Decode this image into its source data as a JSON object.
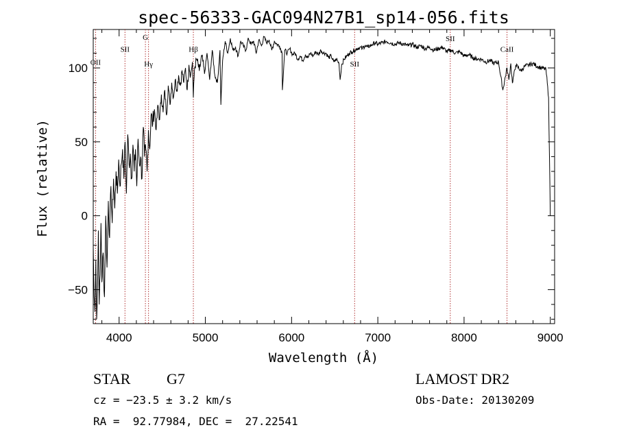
{
  "chart_data": {
    "type": "line",
    "title": "spec-56333-GAC094N27B1_sp14-056.fits",
    "xlabel": "Wavelength (Å)",
    "ylabel": "Flux (relative)",
    "xlim": [
      3700,
      9050
    ],
    "ylim": [
      -73,
      126
    ],
    "xticks": [
      {
        "value": 4000,
        "label": "4000"
      },
      {
        "value": 5000,
        "label": "5000"
      },
      {
        "value": 6000,
        "label": "6000"
      },
      {
        "value": 7000,
        "label": "7000"
      },
      {
        "value": 8000,
        "label": "8000"
      },
      {
        "value": 9000,
        "label": "9000"
      }
    ],
    "yticks": [
      {
        "value": -50,
        "label": "−50"
      },
      {
        "value": 0,
        "label": "0"
      },
      {
        "value": 50,
        "label": "50"
      },
      {
        "value": 100,
        "label": "100"
      }
    ],
    "grid": false,
    "series": [
      {
        "color": "#000000",
        "x": [
          3700,
          3710,
          3720,
          3730,
          3740,
          3750,
          3760,
          3770,
          3780,
          3790,
          3800,
          3815,
          3830,
          3845,
          3860,
          3875,
          3890,
          3905,
          3920,
          3935,
          3950,
          3965,
          3980,
          3995,
          4010,
          4025,
          4040,
          4055,
          4070,
          4085,
          4100,
          4115,
          4130,
          4145,
          4160,
          4175,
          4190,
          4205,
          4220,
          4235,
          4250,
          4265,
          4280,
          4295,
          4310,
          4325,
          4340,
          4355,
          4370,
          4390,
          4410,
          4430,
          4450,
          4470,
          4490,
          4510,
          4530,
          4550,
          4570,
          4590,
          4610,
          4630,
          4650,
          4670,
          4690,
          4710,
          4730,
          4750,
          4770,
          4790,
          4810,
          4830,
          4850,
          4861,
          4875,
          4900,
          4930,
          4960,
          4990,
          5020,
          5050,
          5080,
          5110,
          5140,
          5170,
          5180,
          5200,
          5230,
          5260,
          5290,
          5320,
          5350,
          5380,
          5410,
          5440,
          5470,
          5500,
          5530,
          5560,
          5590,
          5620,
          5650,
          5680,
          5710,
          5740,
          5770,
          5800,
          5830,
          5860,
          5890,
          5893,
          5920,
          5950,
          5980,
          6010,
          6040,
          6070,
          6100,
          6130,
          6160,
          6190,
          6220,
          6250,
          6280,
          6310,
          6340,
          6370,
          6400,
          6430,
          6460,
          6490,
          6520,
          6550,
          6563,
          6580,
          6610,
          6640,
          6670,
          6700,
          6730,
          6760,
          6790,
          6820,
          6850,
          6880,
          6910,
          6940,
          6970,
          7000,
          7050,
          7100,
          7150,
          7200,
          7250,
          7300,
          7350,
          7400,
          7450,
          7500,
          7550,
          7600,
          7650,
          7700,
          7750,
          7800,
          7850,
          7900,
          7950,
          8000,
          8050,
          8100,
          8150,
          8200,
          8250,
          8300,
          8350,
          8400,
          8450,
          8498,
          8520,
          8542,
          8560,
          8600,
          8662,
          8700,
          8750,
          8800,
          8850,
          8900,
          8950,
          8980,
          8990,
          9000
        ],
        "y": [
          -20,
          -55,
          -65,
          -30,
          -70,
          -50,
          -10,
          -60,
          -40,
          -5,
          -45,
          -25,
          -55,
          0,
          -35,
          10,
          -15,
          20,
          -5,
          25,
          5,
          30,
          15,
          38,
          20,
          35,
          45,
          25,
          50,
          15,
          55,
          35,
          42,
          25,
          48,
          30,
          45,
          20,
          52,
          35,
          40,
          25,
          60,
          40,
          45,
          30,
          58,
          45,
          68,
          62,
          72,
          58,
          75,
          65,
          82,
          70,
          85,
          68,
          88,
          75,
          90,
          80,
          92,
          85,
          95,
          88,
          98,
          90,
          100,
          85,
          102,
          95,
          104,
          80,
          100,
          106,
          98,
          108,
          96,
          110,
          92,
          112,
          95,
          90,
          112,
          75,
          105,
          118,
          110,
          120,
          112,
          114,
          108,
          118,
          115,
          112,
          120,
          116,
          118,
          110,
          119,
          115,
          121,
          117,
          119,
          112,
          118,
          116,
          115,
          110,
          85,
          112,
          110,
          113,
          109,
          110,
          106,
          108,
          105,
          109,
          107,
          110,
          108,
          111,
          109,
          112,
          110,
          110,
          107,
          108,
          104,
          106,
          103,
          92,
          102,
          106,
          108,
          110,
          111,
          112,
          113,
          114,
          113,
          115,
          114,
          115,
          116,
          117,
          116,
          117,
          118,
          117,
          116,
          117,
          116,
          115,
          116,
          114,
          115,
          113,
          114,
          112,
          113,
          114,
          111,
          112,
          110,
          111,
          108,
          109,
          107,
          106,
          106,
          104,
          105,
          103,
          104,
          85,
          100,
          92,
          103,
          90,
          102,
          98,
          101,
          102,
          103,
          101,
          100,
          99,
          80,
          40,
          0
        ]
      }
    ],
    "lines": [
      {
        "label": "OII",
        "x": 3727,
        "label_y": 102
      },
      {
        "label": "SII",
        "x": 4068,
        "label_y": 111
      },
      {
        "label": "G",
        "x": 4305,
        "label_y": 119
      },
      {
        "label": "Hγ",
        "x": 4341,
        "label_y": 101
      },
      {
        "label": "Hβ",
        "x": 4861,
        "label_y": 111
      },
      {
        "label": "SII",
        "x": 6731,
        "label_y": 101
      },
      {
        "label": "SII",
        "x": 7840,
        "label_y": 118
      },
      {
        "label": "CaII",
        "x": 8498,
        "label_y": 111
      }
    ]
  },
  "info": {
    "object_type": "STAR",
    "subclass": "G7",
    "survey": "LAMOST DR2",
    "cz": "cz = −23.5 ± 3.2 km/s",
    "obs_date": "Obs-Date: 20130209",
    "coords": "RA =  92.77984, DEC =  27.22541"
  }
}
